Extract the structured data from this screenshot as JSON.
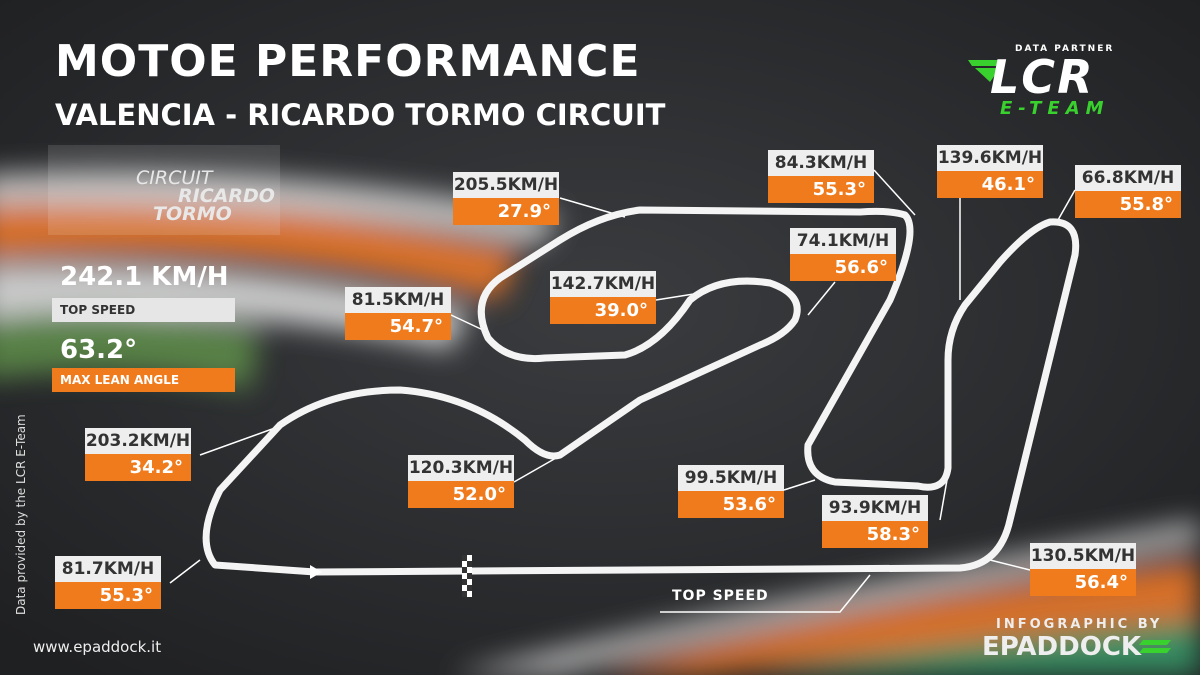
{
  "header": {
    "title": "MOTOE PERFORMANCE",
    "subtitle": "VALENCIA - RICARDO TORMO CIRCUIT"
  },
  "partner": {
    "label": "DATA PARTNER",
    "logo": "LCR",
    "team": "E-TEAM"
  },
  "circuit_logo": [
    "CIRCUIT",
    "RICARDO",
    "TORMO"
  ],
  "stats": [
    {
      "value": "242.1 KM/H",
      "label": "TOP SPEED"
    },
    {
      "value": "63.2°",
      "label": "MAX LEAN ANGLE"
    }
  ],
  "corners": [
    {
      "speed": "205.5KM/H",
      "lean": "27.9°"
    },
    {
      "speed": "84.3KM/H",
      "lean": "55.3°"
    },
    {
      "speed": "139.6KM/H",
      "lean": "46.1°"
    },
    {
      "speed": "66.8KM/H",
      "lean": "55.8°"
    },
    {
      "speed": "74.1KM/H",
      "lean": "56.6°"
    },
    {
      "speed": "142.7KM/H",
      "lean": "39.0°"
    },
    {
      "speed": "81.5KM/H",
      "lean": "54.7°"
    },
    {
      "speed": "203.2KM/H",
      "lean": "34.2°"
    },
    {
      "speed": "120.3KM/H",
      "lean": "52.0°"
    },
    {
      "speed": "99.5KM/H",
      "lean": "53.6°"
    },
    {
      "speed": "93.9KM/H",
      "lean": "58.3°"
    },
    {
      "speed": "81.7KM/H",
      "lean": "55.3°"
    },
    {
      "speed": "130.5KM/H",
      "lean": "56.4°"
    }
  ],
  "track": {
    "top_speed_label": "TOP SPEED"
  },
  "footer": {
    "credit": "Data provided by the LCR E-Team",
    "website": "www.epaddock.it",
    "infographic_by": "INFOGRAPHIC BY",
    "brand": "EPADDOCK"
  }
}
